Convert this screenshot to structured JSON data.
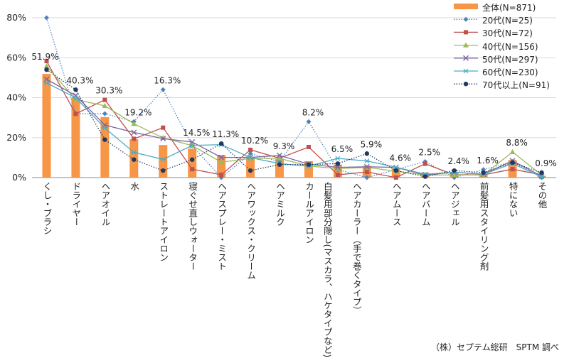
{
  "chart_data": {
    "type": "bar",
    "title": "",
    "xlabel": "",
    "ylabel": "",
    "ylim": [
      0,
      80
    ],
    "yticks": [
      "0%",
      "20%",
      "40%",
      "60%",
      "80%"
    ],
    "grid": true,
    "legend_position": "top-right",
    "categories": [
      "くし・ブラシ",
      "ドライヤー",
      "ヘアオイル",
      "水",
      "ストレートアイロン",
      "寝ぐせ直しウォーター",
      "ヘアスプレー・ミスト",
      "ヘアワックス・クリーム",
      "ヘアミルク",
      "カールアイロン",
      "白髪用部分隠し(マスカラ、ハケタイプなど)",
      "ヘアカーラー（手で巻くタイプ）",
      "ヘアムース",
      "ヘアバーム",
      "ヘアジェル",
      "前髪用スタイリング剤",
      "特にない",
      "その他"
    ],
    "series": [
      {
        "name": "全体(N=871)",
        "kind": "bar",
        "color": "#f79646",
        "values": [
          51.9,
          40.3,
          30.3,
          19.2,
          16.3,
          14.5,
          11.3,
          10.2,
          9.3,
          8.2,
          6.5,
          5.9,
          4.6,
          2.5,
          2.4,
          1.6,
          8.8,
          0.9
        ],
        "labels": [
          "51.9%",
          "40.3%",
          "30.3%",
          "19.2%",
          "16.3%",
          "14.5%",
          "11.3%",
          "10.2%",
          "9.3%",
          "8.2%",
          "6.5%",
          "5.9%",
          "4.6%",
          "2.5%",
          "2.4%",
          "1.6%",
          "8.8%",
          "0.9%"
        ]
      },
      {
        "name": "20代(N=25)",
        "kind": "line",
        "color": "#4f81bd",
        "dash": "dotted",
        "marker": "diamond",
        "values": [
          80,
          32,
          32,
          28,
          44,
          16,
          0,
          12,
          8,
          28,
          4,
          0,
          4,
          8,
          0,
          4,
          8,
          0
        ]
      },
      {
        "name": "30代(N=72)",
        "kind": "line",
        "color": "#c0504d",
        "dash": "solid",
        "marker": "square",
        "values": [
          58.3,
          31.9,
          38.9,
          19.4,
          25.0,
          4.2,
          1.4,
          13.9,
          9.7,
          15.3,
          1.4,
          2.8,
          0.0,
          6.9,
          1.4,
          1.4,
          4.2,
          1.4
        ]
      },
      {
        "name": "40代(N=156)",
        "kind": "line",
        "color": "#9bbb59",
        "dash": "solid",
        "marker": "triangle",
        "values": [
          55.8,
          39.1,
          35.9,
          26.9,
          19.9,
          16.0,
          7.7,
          9.6,
          9.6,
          5.8,
          4.5,
          5.1,
          3.2,
          1.3,
          1.3,
          1.3,
          12.8,
          1.3
        ]
      },
      {
        "name": "50代(N=297)",
        "kind": "line",
        "color": "#8064a2",
        "dash": "solid",
        "marker": "x",
        "values": [
          49.2,
          41.1,
          26.3,
          22.6,
          19.5,
          17.8,
          10.1,
          10.1,
          11.1,
          6.7,
          5.1,
          5.4,
          5.1,
          1.3,
          2.7,
          1.7,
          8.4,
          0.7
        ]
      },
      {
        "name": "60代(N=230)",
        "kind": "line",
        "color": "#4bacc6",
        "dash": "solid",
        "marker": "asterisk",
        "values": [
          47.4,
          40.0,
          24.8,
          12.6,
          9.1,
          16.1,
          16.5,
          10.0,
          7.0,
          5.7,
          9.6,
          8.3,
          5.2,
          1.7,
          2.6,
          1.7,
          7.0,
          0.4
        ]
      },
      {
        "name": "70代以上(N=91)",
        "kind": "line",
        "color": "#1f3864",
        "dash": "dotted",
        "marker": "circle",
        "values": [
          54.0,
          44.0,
          19.0,
          9.0,
          3.5,
          9.0,
          17.0,
          3.5,
          6.5,
          6.5,
          7.0,
          12.0,
          3.5,
          0.5,
          3.5,
          2.5,
          7.5,
          2.5
        ]
      }
    ]
  },
  "source": "（株）セプテム総研　SPTM 調べ"
}
